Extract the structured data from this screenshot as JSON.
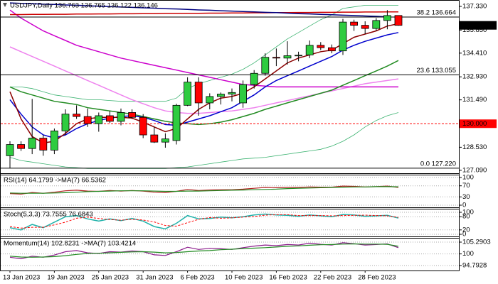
{
  "chart_data": [
    {
      "type": "candlestick",
      "title": "USDJPY,Daily  136.763 136.765 136.122 136.146",
      "categories": [
        "13 Jan 2023",
        null,
        null,
        null,
        "19 Jan 2023",
        null,
        null,
        null,
        "25 Jan 2023",
        null,
        null,
        null,
        "31 Jan 2023",
        null,
        null,
        null,
        "6 Feb 2023",
        null,
        null,
        null,
        "10 Feb 2023",
        null,
        null,
        null,
        "16 Feb 2023",
        null,
        null,
        null,
        "22 Feb 2023",
        null,
        null,
        null,
        "28 Feb 2023",
        null,
        null,
        null
      ],
      "open": [
        128.0,
        128.7,
        128.45,
        129.1,
        128.35,
        129.55,
        130.6,
        130.45,
        130.0,
        130.5,
        130.15,
        130.7,
        130.4,
        129.3,
        128.85,
        128.95,
        131.15,
        132.6,
        131.3,
        131.7,
        131.85,
        131.3,
        132.45,
        133.15,
        134.15,
        134.1,
        134.25,
        134.3,
        134.9,
        134.75,
        134.55,
        136.35,
        136.15,
        135.95,
        136.45,
        136.763
      ],
      "high": [
        128.9,
        128.9,
        131.55,
        129.3,
        129.7,
        130.9,
        131.15,
        130.95,
        130.7,
        130.8,
        130.95,
        130.9,
        130.6,
        129.8,
        129.4,
        131.25,
        132.9,
        132.9,
        131.9,
        131.95,
        132.2,
        132.7,
        133.35,
        134.4,
        134.7,
        135.15,
        134.5,
        135.2,
        135.1,
        134.95,
        136.55,
        136.5,
        136.4,
        136.6,
        137.1,
        136.765
      ],
      "low": [
        127.22,
        128.3,
        128.1,
        128.0,
        128.1,
        129.3,
        130.3,
        129.8,
        129.5,
        130.05,
        129.9,
        130.3,
        129.1,
        128.8,
        128.5,
        128.7,
        131.1,
        130.5,
        130.9,
        131.2,
        131.4,
        131.0,
        132.2,
        133.0,
        133.6,
        133.7,
        133.9,
        134.1,
        134.6,
        134.4,
        134.3,
        135.8,
        135.6,
        135.8,
        135.9,
        136.122
      ],
      "close": [
        128.7,
        128.45,
        129.1,
        128.35,
        129.55,
        130.6,
        130.45,
        130.0,
        130.5,
        130.15,
        130.7,
        130.4,
        129.3,
        128.85,
        129.05,
        131.15,
        132.6,
        131.3,
        131.7,
        131.85,
        131.95,
        132.45,
        133.15,
        134.15,
        134.1,
        134.25,
        134.28,
        134.9,
        134.75,
        134.55,
        136.35,
        136.15,
        135.95,
        136.45,
        136.76,
        136.146
      ],
      "up_color": "#2ecc40",
      "down_color": "#ff0000",
      "ylim": [
        126.95,
        137.73
      ],
      "yticks": [
        {
          "value": 127.09,
          "label": "127.090"
        },
        {
          "value": 128.53,
          "label": "128.530"
        },
        {
          "value": 130.01,
          "label": "130.010"
        },
        {
          "value": 131.49,
          "label": "131.490"
        },
        {
          "value": 132.93,
          "label": "132.930"
        },
        {
          "value": 134.41,
          "label": "134.410"
        },
        {
          "value": 135.85,
          "label": "135.850"
        },
        {
          "value": 137.33,
          "label": "137.330"
        }
      ],
      "series": [
        {
          "color": "#3cb371",
          "width": 0.8,
          "values": [
            132.3,
            132.3,
            132.2,
            132.0,
            131.8,
            131.7,
            131.6,
            131.5,
            131.5,
            131.45,
            131.4,
            131.4,
            131.4,
            131.4,
            131.4,
            131.6,
            132.2,
            132.5,
            132.7,
            132.9,
            133.1,
            133.4,
            133.8,
            134.3,
            134.8,
            135.3,
            135.7,
            136.1,
            136.5,
            136.8,
            137.2,
            137.3,
            137.4,
            137.4,
            137.4,
            137.4
          ]
        },
        {
          "color": "#3cb371",
          "width": 0.8,
          "values": [
            127.9,
            127.7,
            127.6,
            127.5,
            127.4,
            127.3,
            127.25,
            127.2,
            127.2,
            127.2,
            127.2,
            127.2,
            127.2,
            127.2,
            127.2,
            127.25,
            127.3,
            127.4,
            127.5,
            127.6,
            127.7,
            127.8,
            127.85,
            127.9,
            128.0,
            128.1,
            128.2,
            128.3,
            128.4,
            128.6,
            128.9,
            129.3,
            129.8,
            130.2,
            130.5,
            130.7
          ]
        },
        {
          "color": "#ee82ee",
          "width": 1.5,
          "values": [
            134.8,
            134.5,
            134.2,
            133.9,
            133.6,
            133.3,
            133.0,
            132.7,
            132.4,
            132.1,
            131.8,
            131.5,
            131.25,
            131.0,
            130.8,
            130.7,
            130.65,
            130.65,
            130.7,
            130.75,
            130.8,
            130.9,
            131.0,
            131.15,
            131.3,
            131.45,
            131.6,
            131.75,
            131.9,
            132.05,
            132.2,
            132.35,
            132.5,
            132.6,
            132.7,
            132.8
          ]
        },
        {
          "color": "#cc00cc",
          "width": 1.5,
          "values": [
            137.1,
            136.6,
            136.2,
            135.8,
            135.5,
            135.2,
            134.9,
            134.7,
            134.5,
            134.3,
            134.1,
            133.95,
            133.8,
            133.65,
            133.5,
            133.35,
            133.2,
            133.05,
            132.9,
            132.75,
            132.6,
            132.45,
            132.4,
            132.35,
            132.3,
            132.3,
            132.3,
            132.3,
            132.3,
            132.3,
            132.3,
            132.3,
            132.3,
            132.3,
            132.3,
            132.3
          ]
        },
        {
          "color": "#cc0000",
          "width": 1.5,
          "values": [
            136.82,
            136.82,
            136.83,
            136.83,
            136.84,
            136.84,
            136.85,
            136.85,
            136.86,
            136.86,
            136.87,
            136.87,
            136.88,
            136.88,
            136.89,
            136.89,
            136.9,
            136.9,
            136.91,
            136.91,
            136.92,
            136.92,
            136.93,
            136.93,
            136.94,
            136.94,
            136.95,
            136.95,
            136.96,
            136.96,
            136.97,
            136.97,
            136.98,
            136.98,
            136.99,
            136.99
          ]
        },
        {
          "color": "#000080",
          "width": 1.5,
          "values": [
            137.55,
            137.52,
            137.5,
            137.47,
            137.45,
            137.42,
            137.4,
            137.37,
            137.34,
            137.32,
            137.29,
            137.27,
            137.24,
            137.22,
            137.19,
            137.17,
            137.14,
            137.11,
            137.09,
            137.06,
            137.04,
            137.01,
            136.99,
            136.96,
            136.94,
            136.91,
            136.88,
            136.86,
            136.83,
            136.81,
            136.78,
            136.76,
            136.73,
            136.71,
            136.68,
            null
          ]
        },
        {
          "color": "#228b22",
          "width": 1.5,
          "values": [
            132.3,
            132.0,
            131.8,
            131.6,
            131.4,
            131.3,
            131.2,
            131.0,
            130.9,
            130.8,
            130.7,
            130.6,
            130.45,
            130.3,
            130.15,
            130.05,
            130.0,
            129.95,
            130.0,
            130.1,
            130.25,
            130.45,
            130.65,
            130.9,
            131.1,
            131.3,
            131.5,
            131.7,
            131.9,
            132.1,
            132.4,
            132.7,
            133.0,
            133.3,
            133.6,
            133.95
          ]
        },
        {
          "color": "#0000cd",
          "width": 1.5,
          "values": [
            131.5,
            130.6,
            129.8,
            129.3,
            129.1,
            129.3,
            129.7,
            130.0,
            130.2,
            130.35,
            130.45,
            130.5,
            130.4,
            130.2,
            129.95,
            129.9,
            130.1,
            130.3,
            130.5,
            130.75,
            131.0,
            131.4,
            131.8,
            132.3,
            132.7,
            133.0,
            133.3,
            133.6,
            133.9,
            134.2,
            134.6,
            134.9,
            135.15,
            135.35,
            135.55,
            135.7
          ]
        },
        {
          "color": "#8b0000",
          "width": 1.5,
          "values": [
            132.0,
            130.3,
            129.2,
            128.8,
            128.9,
            129.4,
            130.0,
            130.3,
            130.4,
            130.4,
            130.4,
            130.35,
            130.1,
            129.8,
            129.5,
            129.7,
            130.3,
            130.9,
            131.3,
            131.6,
            131.7,
            131.9,
            132.3,
            132.8,
            133.3,
            133.8,
            134.1,
            134.3,
            134.5,
            134.6,
            135.0,
            135.4,
            135.6,
            135.8,
            136.1,
            136.25
          ]
        }
      ],
      "levels": [
        {
          "value": 136.664,
          "label": "38.2 136.664",
          "color": "#000000"
        },
        {
          "value": 133.055,
          "label": "23.6 133.055",
          "color": "#000000"
        },
        {
          "value": 127.22,
          "label": "0.0 127.220",
          "color": "#000000"
        }
      ],
      "hline": {
        "value": 130.0,
        "label": "130.000",
        "color": "#ff0000"
      },
      "last_price": {
        "value": 136.146,
        "label": "136.146"
      }
    },
    {
      "type": "line",
      "title": "RSI(14) 64.1799 ->MA(7) 66.5362",
      "ylim": [
        0,
        100
      ],
      "yticks": [
        0,
        30,
        70,
        100
      ],
      "grid": true,
      "series": [
        {
          "color": "#b22222",
          "width": 1.2,
          "values": [
            42,
            40,
            46,
            43,
            47,
            52,
            54,
            51,
            50,
            53,
            51,
            53,
            51,
            47,
            46,
            50,
            57,
            53,
            55,
            56,
            56,
            58,
            61,
            64,
            63,
            64,
            64,
            66,
            65,
            65,
            69,
            68,
            66,
            67,
            69,
            64.1799
          ]
        },
        {
          "color": "#228b22",
          "width": 1.2,
          "values": [
            44,
            43,
            43,
            43,
            44,
            45,
            47,
            49,
            50,
            51,
            52,
            52,
            52,
            51,
            50,
            50,
            51,
            51,
            52,
            53,
            54,
            55,
            56,
            57,
            58,
            60,
            61,
            62,
            63,
            64,
            65,
            66,
            66,
            67,
            67,
            66.5362
          ]
        }
      ]
    },
    {
      "type": "line",
      "title": "Stoch(5,3,3) 73.7555 76.6843",
      "ylim": [
        0,
        100
      ],
      "yticks": [
        0,
        20,
        80,
        100
      ],
      "grid": true,
      "series": [
        {
          "color": "#20b2aa",
          "width": 1.5,
          "values": [
            30,
            20,
            45,
            30,
            55,
            80,
            85,
            70,
            60,
            70,
            62,
            72,
            60,
            35,
            25,
            50,
            85,
            70,
            72,
            78,
            75,
            80,
            88,
            92,
            88,
            86,
            82,
            88,
            84,
            80,
            90,
            88,
            82,
            84,
            86,
            73.7555
          ]
        },
        {
          "color": "#ff0000",
          "width": 1,
          "style": "dashed",
          "values": [
            35,
            28,
            32,
            32,
            43,
            55,
            73,
            78,
            72,
            67,
            64,
            68,
            65,
            56,
            40,
            37,
            53,
            68,
            76,
            73,
            75,
            78,
            81,
            87,
            89,
            89,
            85,
            85,
            85,
            84,
            85,
            86,
            87,
            85,
            84,
            76.6843
          ]
        }
      ]
    },
    {
      "type": "line",
      "title": "Momentum(14) 102.8231 ->MA(7) 103.4214",
      "ylim": [
        94.7928,
        105.2903
      ],
      "yticks": [
        94.7928,
        100,
        105.2903
      ],
      "grid": true,
      "series": [
        {
          "color": "#8b1a8b",
          "width": 1.2,
          "values": [
            98.5,
            97.8,
            99,
            98.5,
            99.5,
            101,
            101.5,
            100.5,
            100.2,
            101,
            100.8,
            101.3,
            101,
            99.6,
            99.3,
            101,
            103,
            102,
            102.5,
            102.3,
            102,
            102.8,
            103.5,
            104,
            103.7,
            104.2,
            104,
            104.8,
            104.3,
            104,
            105,
            104.6,
            104,
            104.2,
            104.5,
            102.8231
          ]
        },
        {
          "color": "#228b22",
          "width": 1.2,
          "values": [
            99,
            98.6,
            98.5,
            98.6,
            98.8,
            99.2,
            99.8,
            100.2,
            100.3,
            100.5,
            100.7,
            100.9,
            101,
            100.8,
            100.5,
            100.6,
            101,
            101.3,
            101.5,
            101.9,
            102.1,
            102.4,
            102.6,
            102.8,
            103.1,
            103.4,
            103.6,
            103.9,
            104.1,
            104.2,
            104.4,
            104.5,
            104.4,
            104.4,
            104.3,
            103.4214
          ]
        }
      ]
    }
  ]
}
